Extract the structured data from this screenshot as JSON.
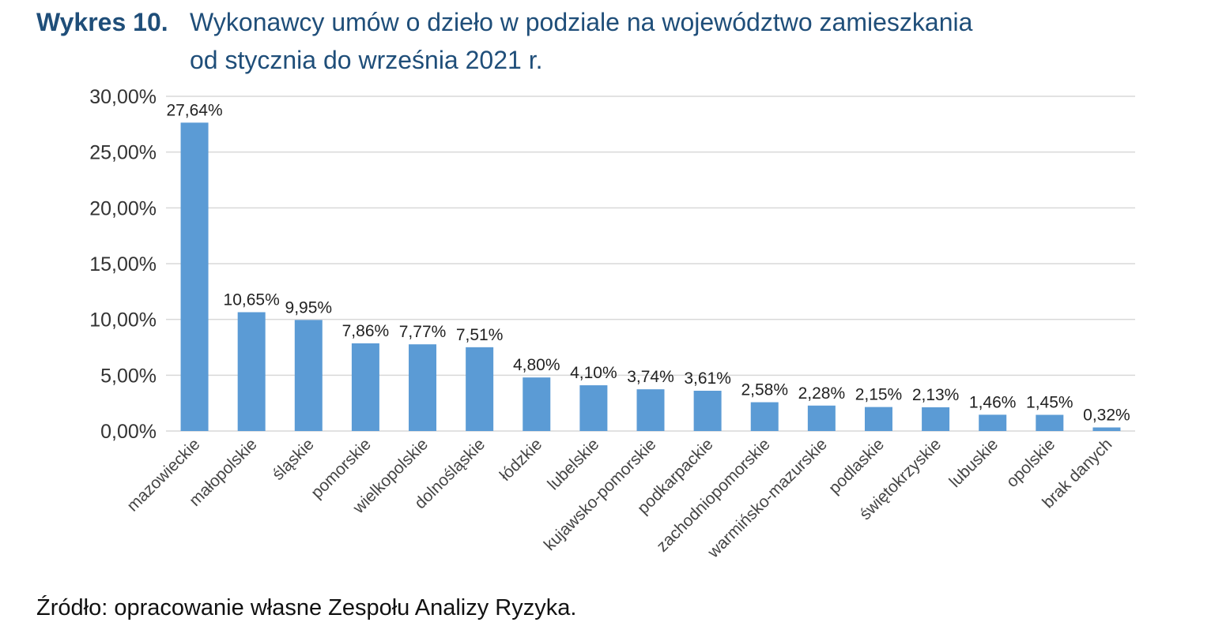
{
  "header": {
    "label": "Wykres 10.",
    "title_line1": "Wykonawcy umów o dzieło w podziale na województwo zamieszkania",
    "title_line2": "od stycznia do września 2021 r."
  },
  "source": "Źródło: opracowanie własne Zespołu Analizy Ryzyka.",
  "colors": {
    "bar": "#5b9bd5",
    "title": "#1f4e79",
    "grid": "#d9d9d9",
    "axis_text": "#333333"
  },
  "chart_data": {
    "type": "bar",
    "categories": [
      "mazowieckie",
      "małopolskie",
      "śląskie",
      "pomorskie",
      "wielkopolskie",
      "dolnośląskie",
      "łódzkie",
      "lubelskie",
      "kujawsko-pomorskie",
      "podkarpackie",
      "zachodniopomorskie",
      "warmińsko-mazurskie",
      "podlaskie",
      "świętokrzyskie",
      "lubuskie",
      "opolskie",
      "brak danych"
    ],
    "values": [
      27.64,
      10.65,
      9.95,
      7.86,
      7.77,
      7.51,
      4.8,
      4.1,
      3.74,
      3.61,
      2.58,
      2.28,
      2.15,
      2.13,
      1.46,
      1.45,
      0.32
    ],
    "data_labels": [
      "27,64%",
      "10,65%",
      "9,95%",
      "7,86%",
      "7,77%",
      "7,51%",
      "4,80%",
      "4,10%",
      "3,74%",
      "3,61%",
      "2,58%",
      "2,28%",
      "2,15%",
      "2,13%",
      "1,46%",
      "1,45%",
      "0,32%"
    ],
    "yticks": [
      0,
      5,
      10,
      15,
      20,
      25,
      30
    ],
    "ytick_labels": [
      "0,00%",
      "5,00%",
      "10,00%",
      "15,00%",
      "20,00%",
      "25,00%",
      "30,00%"
    ],
    "ylim": [
      0,
      30
    ],
    "grid": true,
    "legend": false
  }
}
